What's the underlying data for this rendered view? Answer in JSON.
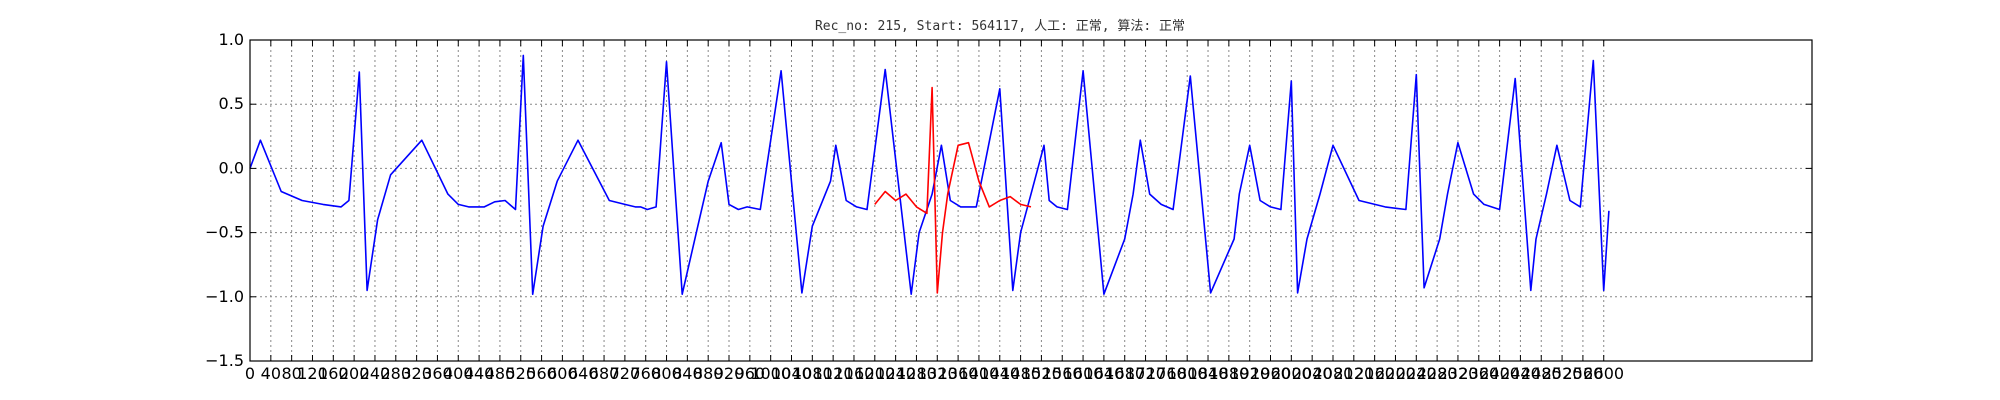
{
  "chart_data": {
    "type": "line",
    "title": "Rec_no: 215, Start: 564117, 人工: 正常, 算法: 正常",
    "xlim": [
      0,
      3000
    ],
    "ylim": [
      -1.5,
      1.0
    ],
    "yticks": [
      1.0,
      0.5,
      0.0,
      -0.5,
      -1.0,
      -1.5
    ],
    "ytick_labels": [
      "1.0",
      "0.5",
      "0.0",
      "−0.5",
      "−1.0",
      "−1.5"
    ],
    "xticks": [
      0,
      40,
      80,
      120,
      160,
      200,
      240,
      280,
      320,
      360,
      400,
      440,
      480,
      520,
      560,
      600,
      640,
      680,
      720,
      760,
      800,
      840,
      880,
      920,
      960,
      1000,
      1040,
      1080,
      1120,
      1160,
      1200,
      1240,
      1280,
      1320,
      1360,
      1400,
      1440,
      1480,
      1520,
      1560,
      1600,
      1640,
      1680,
      1720,
      1760,
      1800,
      1840,
      1880,
      1920,
      1960,
      2000,
      2040,
      2080,
      2120,
      2160,
      2200,
      2240,
      2280,
      2320,
      2360,
      2400,
      2440,
      2480,
      2520,
      2560,
      2600
    ],
    "grid": true,
    "grid_style": "dotted",
    "colors": {
      "normal": "#0000ff",
      "highlight": "#ff0000",
      "grid": "#888888",
      "axes": "#000000"
    },
    "series": [
      {
        "color": "#0000ff",
        "x": [
          0,
          20,
          60,
          100,
          140,
          175,
          190,
          210,
          225,
          245,
          270,
          330,
          380,
          400,
          420,
          450,
          470,
          490,
          510,
          525,
          543,
          563,
          590,
          630,
          690,
          720,
          740,
          750,
          763,
          780,
          800,
          830,
          860,
          880,
          905,
          920,
          938,
          955,
          980,
          1020,
          1060,
          1080,
          1115,
          1125,
          1145,
          1165,
          1185,
          1220,
          1270,
          1285,
          1310,
          1328,
          1345,
          1365,
          1395,
          1440,
          1465,
          1480,
          1500,
          1525,
          1535,
          1550,
          1570,
          1600,
          1640,
          1680,
          1696,
          1710,
          1728,
          1750,
          1773,
          1806,
          1845,
          1890,
          1900,
          1920,
          1940,
          1960,
          1980,
          2000,
          2012,
          2030,
          2055,
          2080,
          2130,
          2180,
          2220,
          2240,
          2255,
          2285,
          2300,
          2320,
          2350,
          2370,
          2400,
          2430,
          2460,
          2470,
          2490,
          2510,
          2535,
          2555,
          2580,
          2600,
          2610
        ],
        "y": [
          0.0,
          0.22,
          -0.18,
          -0.25,
          -0.28,
          -0.3,
          -0.25,
          0.75,
          -0.95,
          -0.4,
          -0.05,
          0.22,
          -0.2,
          -0.28,
          -0.3,
          -0.3,
          -0.26,
          -0.25,
          -0.32,
          0.88,
          -0.98,
          -0.45,
          -0.1,
          0.22,
          -0.25,
          -0.28,
          -0.3,
          -0.3,
          -0.32,
          -0.3,
          0.83,
          -0.98,
          -0.45,
          -0.1,
          0.2,
          -0.28,
          -0.32,
          -0.3,
          -0.32,
          0.76,
          -0.97,
          -0.45,
          -0.1,
          0.18,
          -0.25,
          -0.3,
          -0.32,
          0.77,
          -0.98,
          -0.5,
          -0.2,
          0.18,
          -0.25,
          -0.3,
          -0.3,
          0.62,
          -0.95,
          -0.5,
          -0.2,
          0.18,
          -0.25,
          -0.3,
          -0.32,
          0.76,
          -0.98,
          -0.55,
          -0.2,
          0.22,
          -0.2,
          -0.28,
          -0.32,
          0.72,
          -0.97,
          -0.55,
          -0.2,
          0.18,
          -0.25,
          -0.3,
          -0.32,
          0.68,
          -0.97,
          -0.55,
          -0.2,
          0.18,
          -0.25,
          -0.3,
          -0.32,
          0.73,
          -0.93,
          -0.55,
          -0.2,
          0.2,
          -0.2,
          -0.28,
          -0.32,
          0.7,
          -0.95,
          -0.55,
          -0.2,
          0.18,
          -0.25,
          -0.3,
          0.84,
          -0.95,
          -0.33
        ]
      },
      {
        "color": "#ff0000",
        "x": [
          1200,
          1220,
          1240,
          1260,
          1280,
          1300,
          1310,
          1320,
          1330,
          1340,
          1360,
          1380,
          1400,
          1420,
          1440,
          1460,
          1480,
          1500
        ],
        "y": [
          -0.28,
          -0.18,
          -0.25,
          -0.2,
          -0.3,
          -0.35,
          0.63,
          -0.97,
          -0.5,
          -0.2,
          0.18,
          0.2,
          -0.1,
          -0.3,
          -0.25,
          -0.22,
          -0.28,
          -0.3
        ]
      }
    ]
  }
}
